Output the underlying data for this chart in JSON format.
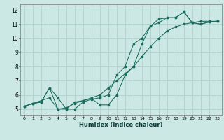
{
  "title": "",
  "xlabel": "Humidex (Indice chaleur)",
  "bg_color": "#cce8e4",
  "grid_color": "#aacfca",
  "line_color": "#1a6b5e",
  "xlim": [
    -0.5,
    23.5
  ],
  "ylim": [
    4.6,
    12.4
  ],
  "xticks": [
    0,
    1,
    2,
    3,
    4,
    5,
    6,
    7,
    8,
    9,
    10,
    11,
    12,
    13,
    14,
    15,
    16,
    17,
    18,
    19,
    20,
    21,
    22,
    23
  ],
  "yticks": [
    5,
    6,
    7,
    8,
    9,
    10,
    11,
    12
  ],
  "line1_x": [
    0,
    1,
    2,
    3,
    4,
    5,
    6,
    7,
    8,
    9,
    10,
    11,
    12,
    13,
    14,
    15,
    16,
    17,
    18,
    19,
    20,
    21,
    22,
    23
  ],
  "line1_y": [
    5.2,
    5.4,
    5.5,
    6.5,
    5.8,
    5.0,
    5.0,
    5.5,
    5.7,
    5.8,
    6.0,
    7.4,
    8.0,
    9.6,
    10.0,
    10.85,
    11.1,
    11.45,
    11.45,
    11.85,
    11.1,
    11.0,
    11.15,
    11.2
  ],
  "line2_x": [
    0,
    1,
    2,
    3,
    4,
    5,
    6,
    7,
    8,
    9,
    10,
    11,
    12,
    13,
    14,
    15,
    16,
    17,
    18,
    19,
    20,
    21,
    22,
    23
  ],
  "line2_y": [
    5.2,
    5.4,
    5.5,
    6.5,
    5.0,
    5.0,
    5.5,
    5.6,
    5.75,
    5.3,
    5.3,
    6.0,
    7.4,
    8.0,
    9.6,
    10.85,
    11.35,
    11.45,
    11.45,
    11.85,
    11.1,
    11.0,
    11.15,
    11.2
  ],
  "line3_x": [
    0,
    1,
    2,
    3,
    4,
    5,
    6,
    7,
    8,
    9,
    10,
    11,
    12,
    13,
    14,
    15,
    16,
    17,
    18,
    19,
    20,
    21,
    22,
    23
  ],
  "line3_y": [
    5.2,
    5.4,
    5.6,
    5.8,
    5.0,
    5.1,
    5.4,
    5.6,
    5.8,
    6.0,
    6.5,
    7.0,
    7.5,
    8.0,
    8.7,
    9.4,
    10.0,
    10.5,
    10.8,
    11.0,
    11.1,
    11.2,
    11.2,
    11.2
  ]
}
